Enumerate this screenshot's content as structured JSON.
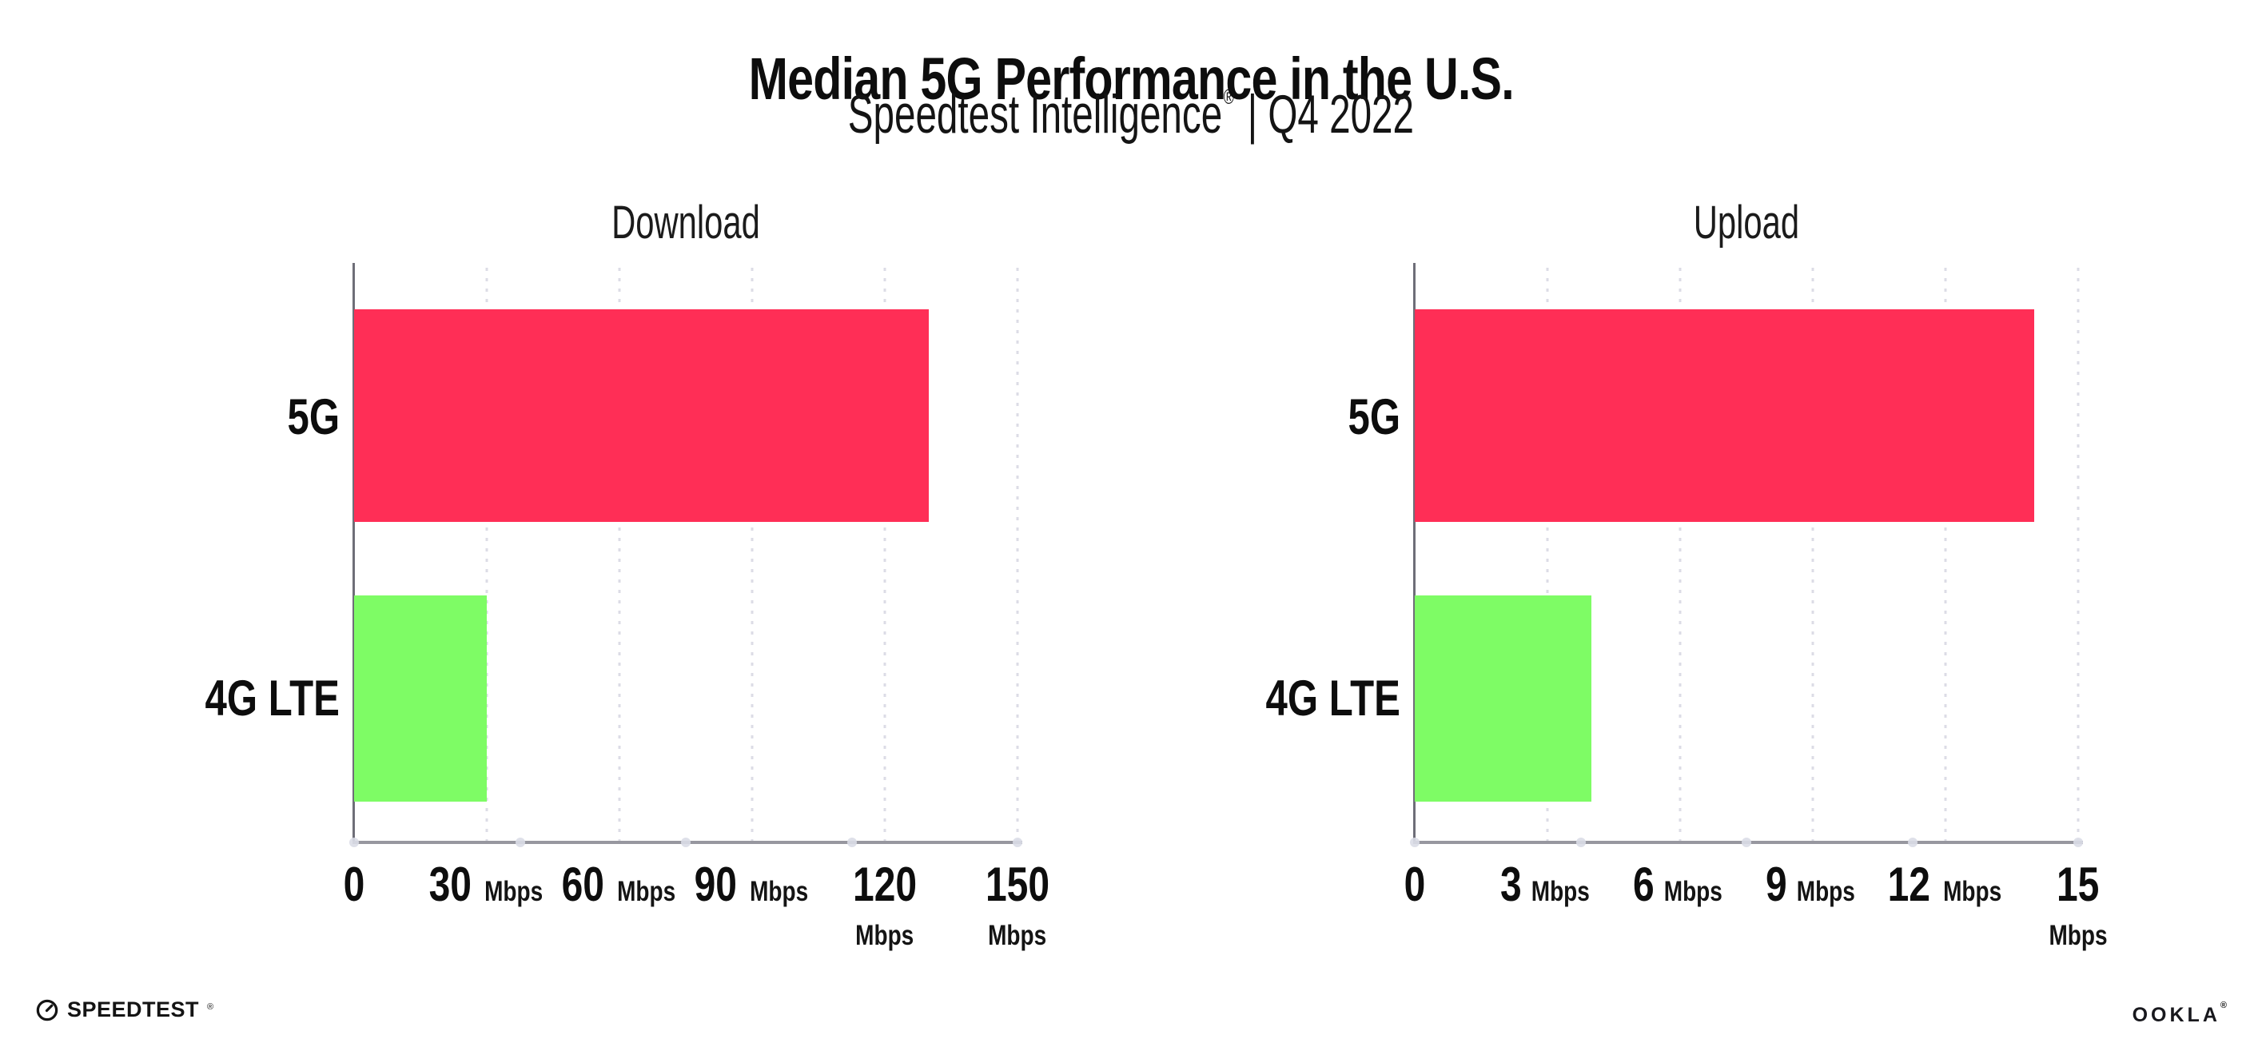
{
  "header": {
    "title": "Median 5G Performance in the U.S.",
    "subtitle_brand": "Speedtest Intelligence",
    "subtitle_reg": "®",
    "subtitle_rest": "| Q4 2022"
  },
  "footer": {
    "speedtest_icon": "gauge-icon",
    "speedtest_label": "SPEEDTEST",
    "speedtest_reg": "®",
    "ookla_label": "OOKLA",
    "ookla_reg": "®"
  },
  "colors": {
    "bar_5g": "#ff2e56",
    "bar_4g_lte": "#7efc65",
    "x_axis": "#97979f",
    "y_axis": "#6e6e78",
    "gridline": "#dcdce6",
    "text": "#0d0d0d"
  },
  "chart_data": [
    {
      "type": "bar",
      "orientation": "horizontal",
      "title": "Download",
      "categories": [
        "5G",
        "4G LTE"
      ],
      "values": [
        130,
        30
      ],
      "unit": "Mbps",
      "xlim": [
        0,
        150
      ],
      "xticks": [
        0,
        30,
        60,
        90,
        120,
        150
      ],
      "bar_colors": [
        "#ff2e56",
        "#7efc65"
      ],
      "grid": "dotted-vertical",
      "legend": "none"
    },
    {
      "type": "bar",
      "orientation": "horizontal",
      "title": "Upload",
      "categories": [
        "5G",
        "4G LTE"
      ],
      "values": [
        14,
        4
      ],
      "unit": "Mbps",
      "xlim": [
        0,
        15
      ],
      "xticks": [
        0,
        3,
        6,
        9,
        12,
        15
      ],
      "bar_colors": [
        "#ff2e56",
        "#7efc65"
      ],
      "grid": "dotted-vertical",
      "legend": "none"
    }
  ]
}
